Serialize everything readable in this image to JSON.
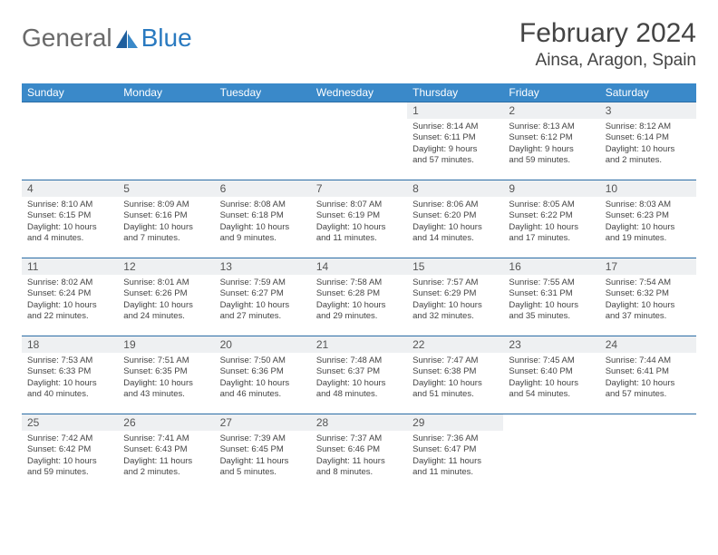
{
  "logo": {
    "part1": "General",
    "part2": "Blue"
  },
  "title": "February 2024",
  "location": "Ainsa, Aragon, Spain",
  "colors": {
    "header_bg": "#3a89c9",
    "daynum_bg": "#eef0f2",
    "row_border": "#2a6ca5"
  },
  "weekdays": [
    "Sunday",
    "Monday",
    "Tuesday",
    "Wednesday",
    "Thursday",
    "Friday",
    "Saturday"
  ],
  "weeks": [
    [
      {
        "n": "",
        "sr": "",
        "ss": "",
        "d1": "",
        "d2": ""
      },
      {
        "n": "",
        "sr": "",
        "ss": "",
        "d1": "",
        "d2": ""
      },
      {
        "n": "",
        "sr": "",
        "ss": "",
        "d1": "",
        "d2": ""
      },
      {
        "n": "",
        "sr": "",
        "ss": "",
        "d1": "",
        "d2": ""
      },
      {
        "n": "1",
        "sr": "Sunrise: 8:14 AM",
        "ss": "Sunset: 6:11 PM",
        "d1": "Daylight: 9 hours",
        "d2": "and 57 minutes."
      },
      {
        "n": "2",
        "sr": "Sunrise: 8:13 AM",
        "ss": "Sunset: 6:12 PM",
        "d1": "Daylight: 9 hours",
        "d2": "and 59 minutes."
      },
      {
        "n": "3",
        "sr": "Sunrise: 8:12 AM",
        "ss": "Sunset: 6:14 PM",
        "d1": "Daylight: 10 hours",
        "d2": "and 2 minutes."
      }
    ],
    [
      {
        "n": "4",
        "sr": "Sunrise: 8:10 AM",
        "ss": "Sunset: 6:15 PM",
        "d1": "Daylight: 10 hours",
        "d2": "and 4 minutes."
      },
      {
        "n": "5",
        "sr": "Sunrise: 8:09 AM",
        "ss": "Sunset: 6:16 PM",
        "d1": "Daylight: 10 hours",
        "d2": "and 7 minutes."
      },
      {
        "n": "6",
        "sr": "Sunrise: 8:08 AM",
        "ss": "Sunset: 6:18 PM",
        "d1": "Daylight: 10 hours",
        "d2": "and 9 minutes."
      },
      {
        "n": "7",
        "sr": "Sunrise: 8:07 AM",
        "ss": "Sunset: 6:19 PM",
        "d1": "Daylight: 10 hours",
        "d2": "and 11 minutes."
      },
      {
        "n": "8",
        "sr": "Sunrise: 8:06 AM",
        "ss": "Sunset: 6:20 PM",
        "d1": "Daylight: 10 hours",
        "d2": "and 14 minutes."
      },
      {
        "n": "9",
        "sr": "Sunrise: 8:05 AM",
        "ss": "Sunset: 6:22 PM",
        "d1": "Daylight: 10 hours",
        "d2": "and 17 minutes."
      },
      {
        "n": "10",
        "sr": "Sunrise: 8:03 AM",
        "ss": "Sunset: 6:23 PM",
        "d1": "Daylight: 10 hours",
        "d2": "and 19 minutes."
      }
    ],
    [
      {
        "n": "11",
        "sr": "Sunrise: 8:02 AM",
        "ss": "Sunset: 6:24 PM",
        "d1": "Daylight: 10 hours",
        "d2": "and 22 minutes."
      },
      {
        "n": "12",
        "sr": "Sunrise: 8:01 AM",
        "ss": "Sunset: 6:26 PM",
        "d1": "Daylight: 10 hours",
        "d2": "and 24 minutes."
      },
      {
        "n": "13",
        "sr": "Sunrise: 7:59 AM",
        "ss": "Sunset: 6:27 PM",
        "d1": "Daylight: 10 hours",
        "d2": "and 27 minutes."
      },
      {
        "n": "14",
        "sr": "Sunrise: 7:58 AM",
        "ss": "Sunset: 6:28 PM",
        "d1": "Daylight: 10 hours",
        "d2": "and 29 minutes."
      },
      {
        "n": "15",
        "sr": "Sunrise: 7:57 AM",
        "ss": "Sunset: 6:29 PM",
        "d1": "Daylight: 10 hours",
        "d2": "and 32 minutes."
      },
      {
        "n": "16",
        "sr": "Sunrise: 7:55 AM",
        "ss": "Sunset: 6:31 PM",
        "d1": "Daylight: 10 hours",
        "d2": "and 35 minutes."
      },
      {
        "n": "17",
        "sr": "Sunrise: 7:54 AM",
        "ss": "Sunset: 6:32 PM",
        "d1": "Daylight: 10 hours",
        "d2": "and 37 minutes."
      }
    ],
    [
      {
        "n": "18",
        "sr": "Sunrise: 7:53 AM",
        "ss": "Sunset: 6:33 PM",
        "d1": "Daylight: 10 hours",
        "d2": "and 40 minutes."
      },
      {
        "n": "19",
        "sr": "Sunrise: 7:51 AM",
        "ss": "Sunset: 6:35 PM",
        "d1": "Daylight: 10 hours",
        "d2": "and 43 minutes."
      },
      {
        "n": "20",
        "sr": "Sunrise: 7:50 AM",
        "ss": "Sunset: 6:36 PM",
        "d1": "Daylight: 10 hours",
        "d2": "and 46 minutes."
      },
      {
        "n": "21",
        "sr": "Sunrise: 7:48 AM",
        "ss": "Sunset: 6:37 PM",
        "d1": "Daylight: 10 hours",
        "d2": "and 48 minutes."
      },
      {
        "n": "22",
        "sr": "Sunrise: 7:47 AM",
        "ss": "Sunset: 6:38 PM",
        "d1": "Daylight: 10 hours",
        "d2": "and 51 minutes."
      },
      {
        "n": "23",
        "sr": "Sunrise: 7:45 AM",
        "ss": "Sunset: 6:40 PM",
        "d1": "Daylight: 10 hours",
        "d2": "and 54 minutes."
      },
      {
        "n": "24",
        "sr": "Sunrise: 7:44 AM",
        "ss": "Sunset: 6:41 PM",
        "d1": "Daylight: 10 hours",
        "d2": "and 57 minutes."
      }
    ],
    [
      {
        "n": "25",
        "sr": "Sunrise: 7:42 AM",
        "ss": "Sunset: 6:42 PM",
        "d1": "Daylight: 10 hours",
        "d2": "and 59 minutes."
      },
      {
        "n": "26",
        "sr": "Sunrise: 7:41 AM",
        "ss": "Sunset: 6:43 PM",
        "d1": "Daylight: 11 hours",
        "d2": "and 2 minutes."
      },
      {
        "n": "27",
        "sr": "Sunrise: 7:39 AM",
        "ss": "Sunset: 6:45 PM",
        "d1": "Daylight: 11 hours",
        "d2": "and 5 minutes."
      },
      {
        "n": "28",
        "sr": "Sunrise: 7:37 AM",
        "ss": "Sunset: 6:46 PM",
        "d1": "Daylight: 11 hours",
        "d2": "and 8 minutes."
      },
      {
        "n": "29",
        "sr": "Sunrise: 7:36 AM",
        "ss": "Sunset: 6:47 PM",
        "d1": "Daylight: 11 hours",
        "d2": "and 11 minutes."
      },
      {
        "n": "",
        "sr": "",
        "ss": "",
        "d1": "",
        "d2": ""
      },
      {
        "n": "",
        "sr": "",
        "ss": "",
        "d1": "",
        "d2": ""
      }
    ]
  ]
}
